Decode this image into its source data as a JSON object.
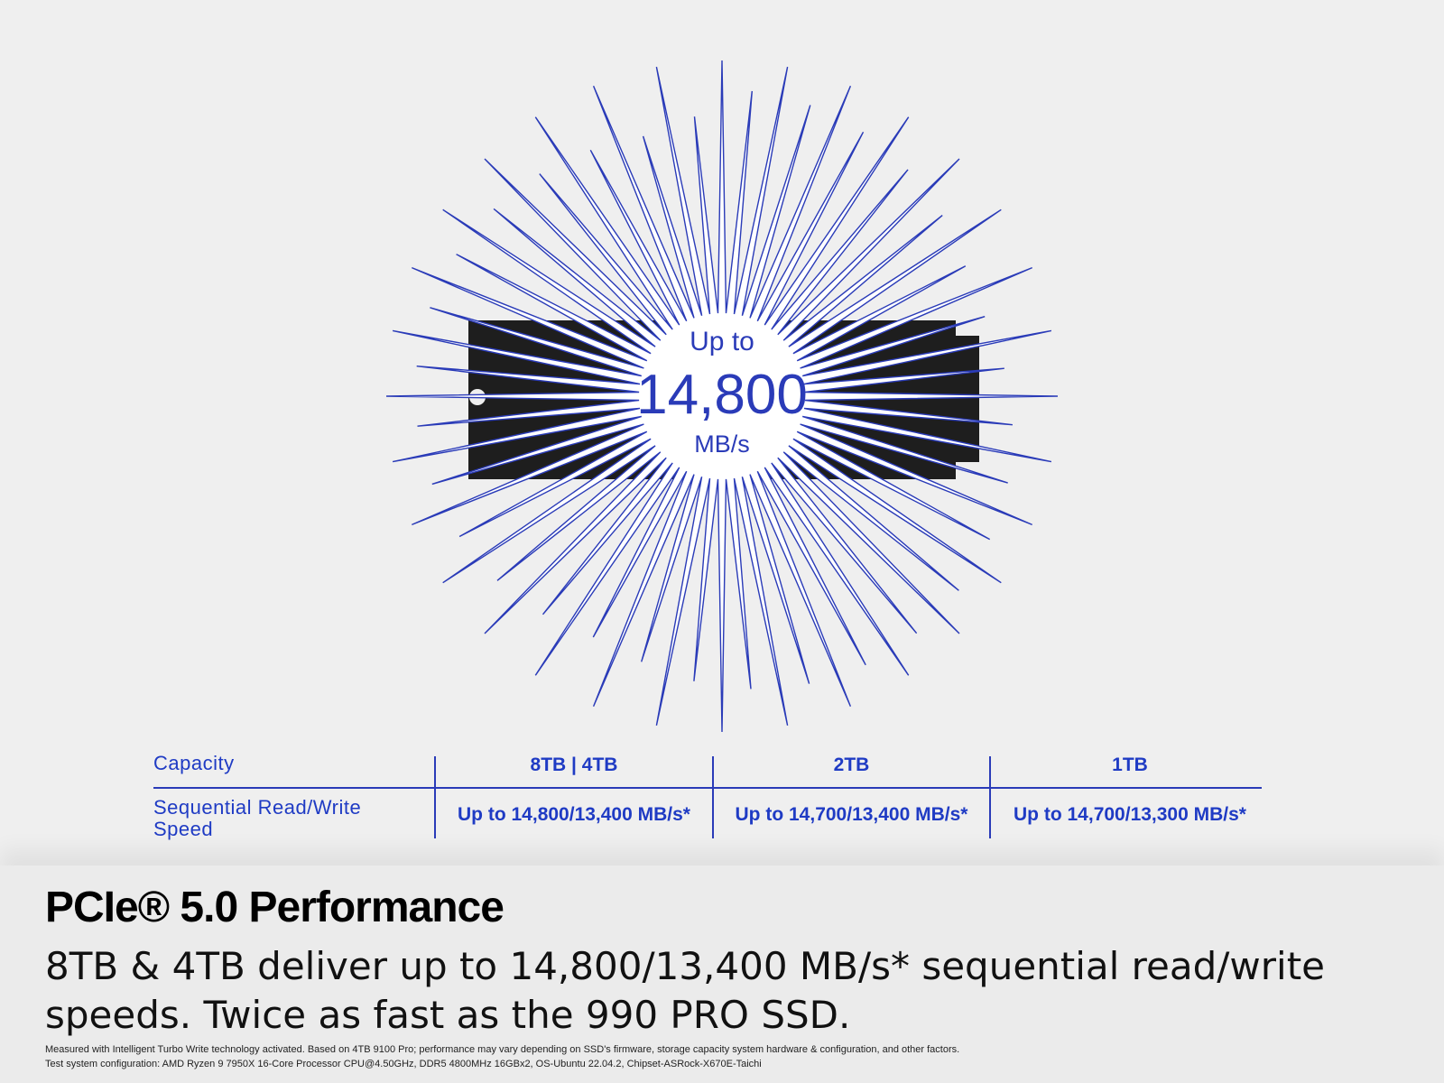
{
  "hero": {
    "prefix": "Up to",
    "value": "14,800",
    "unit": "MB/s"
  },
  "table": {
    "rows": [
      [
        "Capacity",
        "8TB | 4TB",
        "2TB",
        "1TB"
      ],
      [
        "Sequential Read/Write Speed",
        "Up to 14,800/13,400 MB/s*",
        "Up to 14,700/13,400 MB/s*",
        "Up to 14,700/13,300 MB/s*"
      ]
    ]
  },
  "footer": {
    "title": "PCIe® 5.0 Performance",
    "body": "8TB & 4TB deliver up to 14,800/13,400 MB/s* sequential read/write speeds. Twice as fast as the 990 PRO SSD.",
    "notes": [
      "Measured with Intelligent Turbo Write technology activated. Based on 4TB 9100 Pro; performance may vary depending on SSD's firmware, storage capacity system hardware & configuration, and other factors.",
      "Test system configuration: AMD Ryzen 9 7950X 16-Core Processor CPU@4.50GHz, DDR5 4800MHz 16GBx2, OS-Ubuntu 22.04.2, Chipset-ASRock-X670E-Taichi"
    ]
  }
}
